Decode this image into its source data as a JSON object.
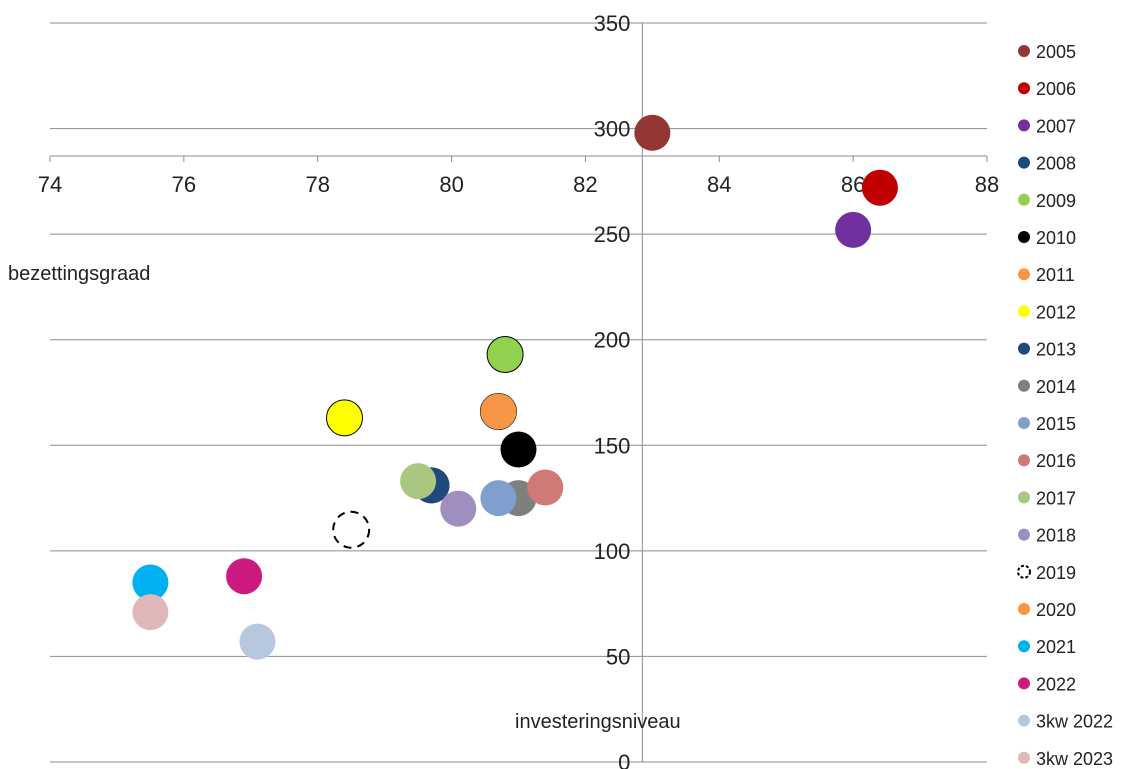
{
  "chart_data": {
    "type": "scatter",
    "xlabel": "investeringsniveau",
    "ylabel": "bezettingsgraad",
    "xlim": [
      74,
      88
    ],
    "ylim": [
      0,
      350
    ],
    "x_ticks": [
      74,
      76,
      78,
      80,
      82,
      84,
      86,
      88
    ],
    "y_ticks": [
      0,
      50,
      100,
      150,
      200,
      250,
      300,
      350
    ],
    "x_axis_crosses_y_at": 287,
    "y_axis_crosses_x_at": 82.85,
    "grid": "horizontal",
    "legend_position": "right",
    "series": [
      {
        "name": "2005",
        "x": 83.0,
        "y": 298,
        "color": "#943634",
        "style": "filled"
      },
      {
        "name": "2006",
        "x": 86.4,
        "y": 272,
        "color": "#c00000",
        "style": "filled"
      },
      {
        "name": "2007",
        "x": 86.0,
        "y": 252,
        "color": "#7030a0",
        "style": "filled"
      },
      {
        "name": "2008",
        "x": 79.7,
        "y": 131,
        "color": "#1f497d",
        "style": "filled"
      },
      {
        "name": "2009",
        "x": 80.8,
        "y": 193,
        "color": "#92d050",
        "style": "outlined"
      },
      {
        "name": "2010",
        "x": 81.0,
        "y": 148,
        "color": "#000000",
        "style": "filled"
      },
      {
        "name": "2011",
        "x": 80.7,
        "y": 166,
        "color": "#f79646",
        "style": "outlined"
      },
      {
        "name": "2012",
        "x": 78.4,
        "y": 163,
        "color": "#ffff00",
        "style": "outlined"
      },
      {
        "name": "2013",
        "x": 79.7,
        "y": 131,
        "color": "#1f497d",
        "style": "filled"
      },
      {
        "name": "2014",
        "x": 81.0,
        "y": 125,
        "color": "#7f7f7f",
        "style": "filled"
      },
      {
        "name": "2015",
        "x": 80.7,
        "y": 125,
        "color": "#7f9fcf",
        "style": "filled"
      },
      {
        "name": "2016",
        "x": 81.4,
        "y": 130,
        "color": "#d07a78",
        "style": "filled"
      },
      {
        "name": "2017",
        "x": 79.5,
        "y": 133,
        "color": "#a9c77f",
        "style": "filled"
      },
      {
        "name": "2018",
        "x": 80.1,
        "y": 120,
        "color": "#9f8ec0",
        "style": "filled"
      },
      {
        "name": "2019",
        "x": 78.5,
        "y": 110,
        "color": "#000000",
        "style": "dashed"
      },
      {
        "name": "2020",
        "x": 80.7,
        "y": 166,
        "color": "#f79646",
        "style": "filled"
      },
      {
        "name": "2021",
        "x": 75.5,
        "y": 85,
        "color": "#00b0f0",
        "style": "filled"
      },
      {
        "name": "2022",
        "x": 76.9,
        "y": 88,
        "color": "#cc1a82",
        "style": "filled"
      },
      {
        "name": "3kw 2022",
        "x": 77.1,
        "y": 57,
        "color": "#b8c7e0",
        "style": "filled"
      },
      {
        "name": "3kw 2023",
        "x": 75.5,
        "y": 71,
        "color": "#e0b8b8",
        "style": "filled"
      }
    ]
  }
}
